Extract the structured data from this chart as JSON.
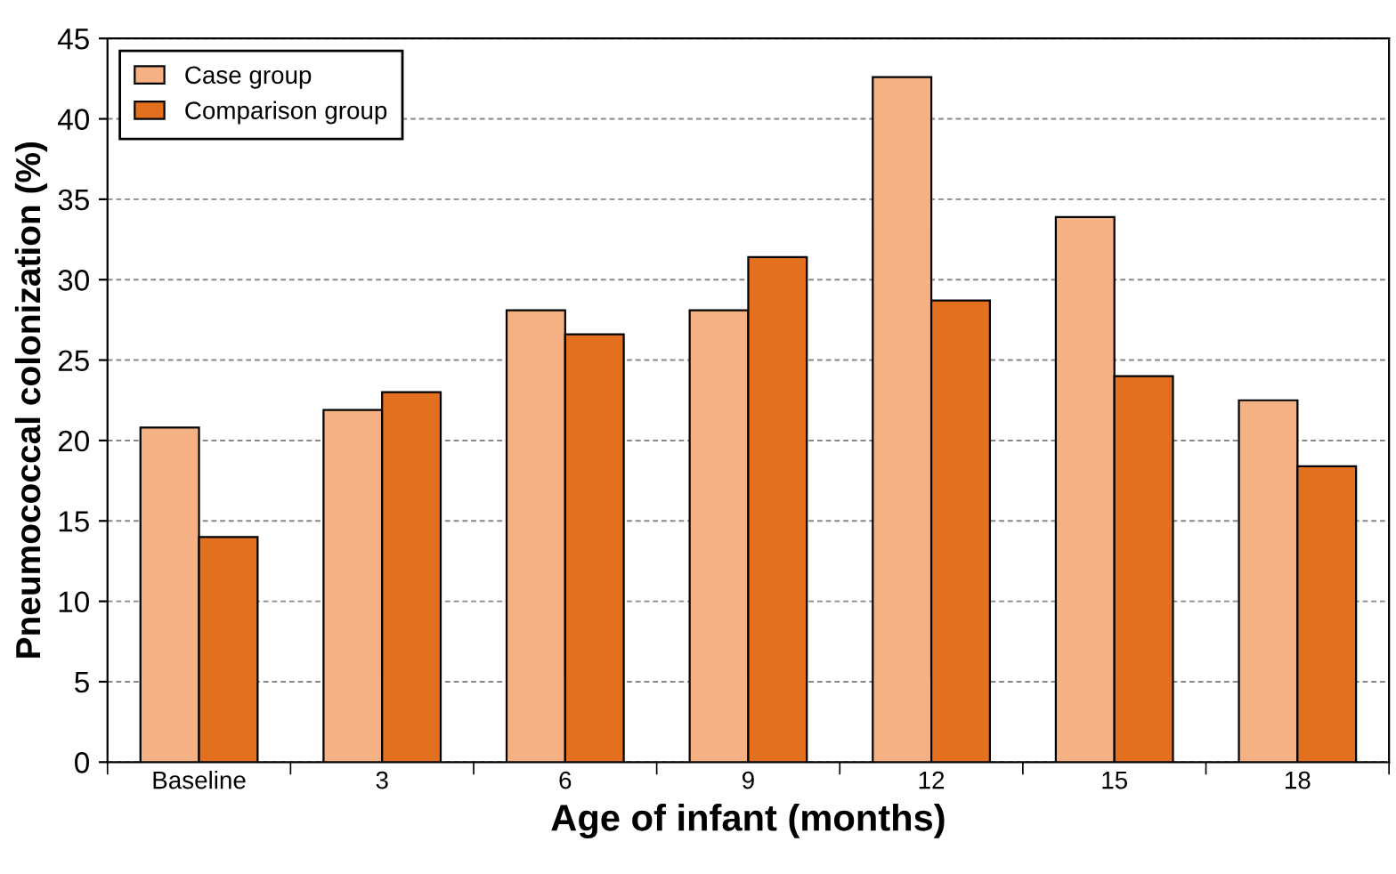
{
  "chart_data": {
    "type": "bar",
    "xlabel": "Age of infant (months)",
    "ylabel": "Pneumococcal colonization (%)",
    "categories": [
      "Baseline",
      "3",
      "6",
      "9",
      "12",
      "15",
      "18"
    ],
    "series": [
      {
        "name": "Case group",
        "color": "#f5b183",
        "values": [
          20.8,
          21.9,
          28.1,
          28.1,
          42.6,
          33.9,
          22.5
        ]
      },
      {
        "name": "Comparison group",
        "color": "#e2701f",
        "values": [
          14.0,
          23.0,
          26.6,
          31.4,
          28.7,
          24.0,
          18.4
        ]
      }
    ],
    "ylim": [
      0,
      45
    ],
    "yticks": [
      0,
      5,
      10,
      15,
      20,
      25,
      30,
      35,
      40,
      45
    ],
    "grid": "y",
    "legend": "top left"
  }
}
